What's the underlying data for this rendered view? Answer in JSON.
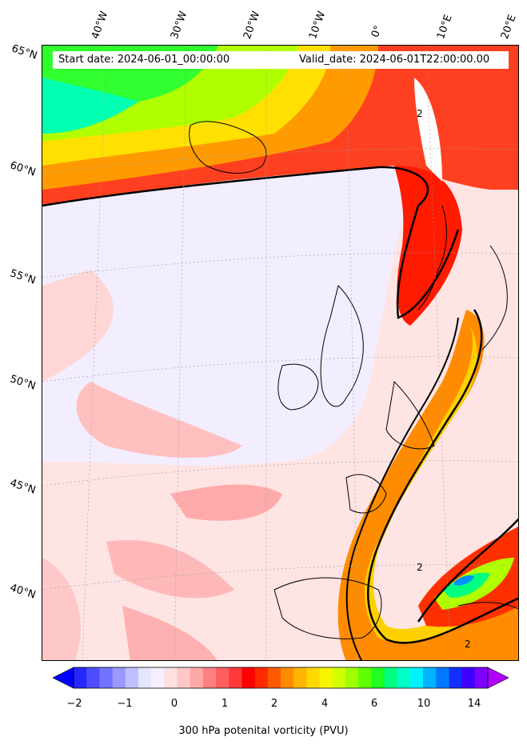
{
  "header": {
    "start_label": "Start date: 2024-06-01_00:00:00",
    "valid_label": "Valid_date: 2024-06-01T22:00:00.00"
  },
  "longitude_labels": [
    "40°W",
    "30°W",
    "20°W",
    "10°W",
    "0°",
    "10°E",
    "20°E"
  ],
  "latitude_labels": [
    "65°N",
    "60°N",
    "55°N",
    "50°N",
    "45°N",
    "40°N"
  ],
  "contour_labels": [
    "2",
    "2",
    "2"
  ],
  "colorbar": {
    "title": "300 hPa potenital vorticity (PVU)",
    "ticks": [
      "−2",
      "−1",
      "0",
      "1",
      "2",
      "4",
      "6",
      "10",
      "14"
    ],
    "colors": [
      "#0000ff",
      "#2626ff",
      "#4d4dff",
      "#7373ff",
      "#9999ff",
      "#bfbfff",
      "#e5e5ff",
      "#f5f0ff",
      "#ffe0e0",
      "#ffc8c8",
      "#ffa8a8",
      "#ff8080",
      "#ff5e5e",
      "#ff3a3a",
      "#ff0000",
      "#ff2a00",
      "#ff5a00",
      "#ff8c00",
      "#ffb400",
      "#ffd800",
      "#f5f500",
      "#d2ff00",
      "#a0ff00",
      "#60ff00",
      "#20ff20",
      "#00ff80",
      "#00ffc8",
      "#00f0ff",
      "#00b4ff",
      "#0078ff",
      "#1030ff",
      "#4000ff",
      "#8000ff",
      "#b000ff"
    ]
  },
  "colors": {
    "frame": "#000000",
    "low_pv": "#f0f0ff",
    "background_pv": "#ffe4e4",
    "tropopause_contour": "#000000"
  }
}
